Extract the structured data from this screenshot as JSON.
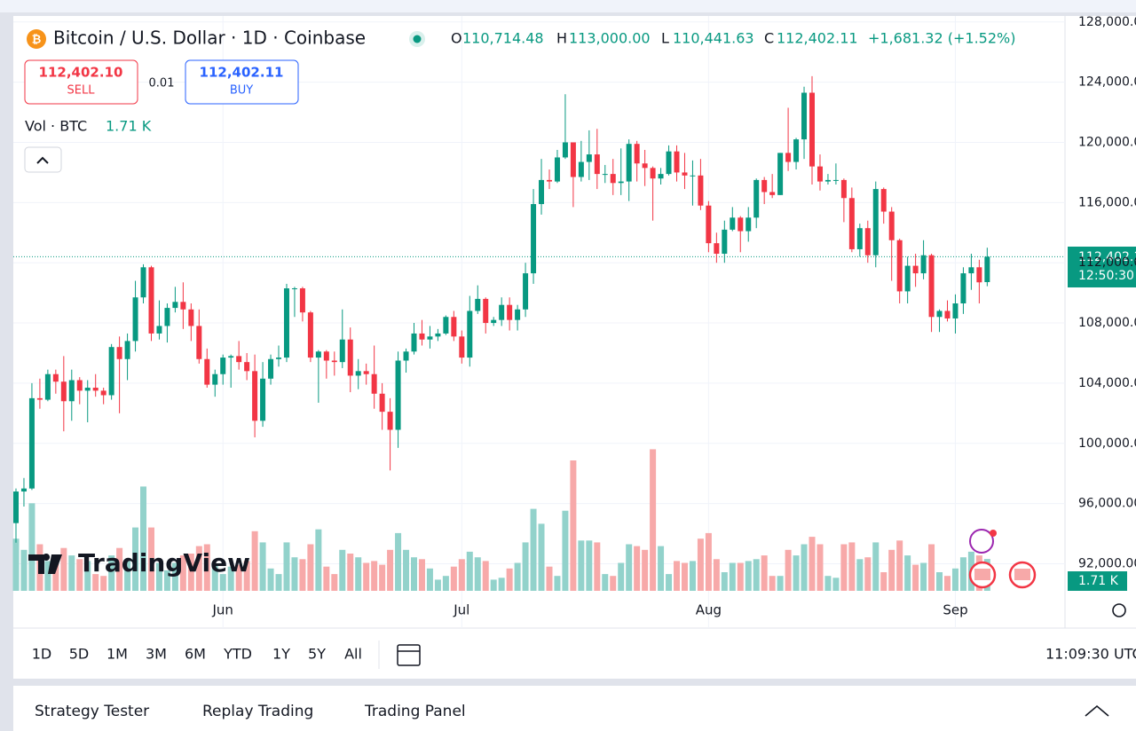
{
  "header": {
    "symbol": "Bitcoin / U.S. Dollar · 1D · Coinbase",
    "ohlc": [
      {
        "key": "O",
        "value": "110,714.48"
      },
      {
        "key": "H",
        "value": "113,000.00"
      },
      {
        "key": "L",
        "value": "110,441.63"
      },
      {
        "key": "C",
        "value": "112,402.11"
      }
    ],
    "change": "+1,681.32 (+1.52%)"
  },
  "trade": {
    "sell_price": "112,402.10",
    "sell": "SELL",
    "spread": "0.01",
    "buy_price": "112,402.11",
    "buy": "BUY"
  },
  "volume_legend": {
    "title": "Vol · BTC",
    "value": "1.71 K"
  },
  "logo": "TradingView",
  "chart_data": {
    "type": "candlestick",
    "categories": [
      null,
      null,
      null,
      null,
      null,
      null,
      null,
      null,
      null,
      null,
      null,
      null,
      null,
      null,
      null,
      null,
      null,
      null,
      null,
      null,
      null,
      null,
      null,
      null,
      null,
      null,
      "Jun",
      null,
      null,
      null,
      null,
      null,
      null,
      null,
      null,
      null,
      null,
      null,
      null,
      null,
      null,
      null,
      null,
      null,
      null,
      null,
      null,
      null,
      null,
      null,
      null,
      null,
      null,
      null,
      null,
      null,
      "Jul",
      null,
      null,
      null,
      null,
      null,
      null,
      null,
      null,
      null,
      null,
      null,
      null,
      null,
      null,
      null,
      null,
      null,
      null,
      null,
      null,
      null,
      null,
      null,
      null,
      null,
      null,
      null,
      null,
      null,
      null,
      "Aug",
      null,
      null,
      null,
      null,
      null,
      null,
      null,
      null,
      null,
      null,
      null,
      null,
      null,
      null,
      null,
      null,
      null,
      null,
      null,
      null,
      null,
      null,
      null,
      null,
      null,
      null,
      null,
      null,
      null,
      null,
      "Sep",
      null,
      null,
      null,
      null
    ],
    "open": [
      94700,
      96800,
      97000,
      103000,
      102900,
      104600,
      104100,
      102800,
      104200,
      103500,
      103700,
      103500,
      103200,
      106400,
      105600,
      106800,
      109700,
      111700,
      107300,
      107800,
      109000,
      109400,
      108900,
      107800,
      105600,
      103900,
      104600,
      105700,
      105800,
      105400,
      104800,
      101500,
      104300,
      105600,
      105700,
      110300,
      110300,
      108700,
      105700,
      106100,
      105500,
      105400,
      106900,
      104500,
      104800,
      104600,
      103300,
      102100,
      100900,
      105500,
      106100,
      107300,
      106900,
      107100,
      107300,
      108400,
      107100,
      105700,
      108800,
      109600,
      108000,
      108200,
      109200,
      108200,
      108900,
      111300,
      115900,
      117500,
      117400,
      119000,
      120000,
      117700,
      118700,
      119200,
      117900,
      117900,
      117300,
      117400,
      119900,
      118600,
      118300,
      117600,
      117900,
      119400,
      118000,
      117800,
      117800,
      115800,
      113300,
      112600,
      114200,
      115000,
      114100,
      115000,
      117500,
      116700,
      116500,
      119300,
      118700,
      120200,
      123300,
      118400,
      117400,
      117500,
      117500,
      116300,
      112900,
      114300,
      112500,
      116900,
      115400,
      113500,
      110100,
      111800,
      111300,
      112500,
      108400,
      108800,
      108300,
      109300,
      111300,
      111700,
      110714.48
    ],
    "high": [
      97000,
      97700,
      104000,
      104300,
      104900,
      104900,
      105800,
      104900,
      104400,
      104200,
      104600,
      103700,
      106600,
      107100,
      107300,
      110800,
      111900,
      111800,
      109500,
      109300,
      110400,
      110700,
      109300,
      108900,
      106300,
      104900,
      105900,
      105900,
      106800,
      106000,
      105900,
      105400,
      105900,
      106500,
      110600,
      110400,
      110400,
      108800,
      106200,
      106200,
      106100,
      108900,
      107700,
      105600,
      105300,
      106500,
      104000,
      103000,
      106100,
      106300,
      108000,
      108200,
      107800,
      107600,
      108500,
      108800,
      107500,
      109800,
      110500,
      109700,
      108400,
      109700,
      109700,
      109200,
      112000,
      116900,
      118900,
      118200,
      119500,
      123200,
      120000,
      120100,
      120800,
      120900,
      118500,
      118900,
      119600,
      120200,
      120100,
      119500,
      118400,
      118300,
      119800,
      119800,
      119300,
      118800,
      118900,
      116100,
      114000,
      114800,
      115700,
      115100,
      115700,
      117600,
      117700,
      117900,
      119300,
      122300,
      120300,
      123700,
      124400,
      119200,
      117900,
      118600,
      117600,
      117000,
      114600,
      114800,
      117400,
      117000,
      115700,
      113600,
      112400,
      112600,
      113500,
      112600,
      108900,
      109500,
      109900,
      111700,
      112600,
      112200,
      113000
    ],
    "low": [
      93400,
      95800,
      96900,
      102300,
      102800,
      103300,
      100800,
      101500,
      102600,
      101400,
      103100,
      102600,
      102900,
      102000,
      104200,
      106100,
      109300,
      106800,
      106900,
      106700,
      108700,
      107600,
      106800,
      105300,
      103700,
      103100,
      103900,
      103700,
      104900,
      104200,
      100400,
      101100,
      103900,
      105100,
      105400,
      108400,
      108100,
      105400,
      102700,
      104300,
      104500,
      105000,
      103400,
      103600,
      103900,
      102300,
      100900,
      98200,
      99700,
      104700,
      105900,
      106500,
      106300,
      106800,
      107200,
      106800,
      105300,
      105100,
      108600,
      107300,
      107800,
      107800,
      107500,
      107500,
      108400,
      110600,
      115200,
      116900,
      117300,
      118900,
      115700,
      117400,
      117500,
      116900,
      117300,
      116500,
      116500,
      116100,
      117400,
      117100,
      114800,
      117200,
      117800,
      117400,
      116900,
      115800,
      115500,
      112700,
      112000,
      112000,
      114100,
      112700,
      113400,
      114300,
      115900,
      116300,
      116500,
      118100,
      118200,
      118900,
      117200,
      116800,
      117200,
      117200,
      114700,
      112700,
      112400,
      112000,
      111700,
      114600,
      110800,
      109300,
      109300,
      110400,
      110900,
      107400,
      107400,
      108100,
      107300,
      108600,
      110200,
      109300,
      110441.63
    ],
    "close": [
      96800,
      97000,
      103000,
      102900,
      104600,
      104100,
      102800,
      104200,
      103500,
      103700,
      103500,
      103200,
      106400,
      105600,
      106800,
      109700,
      111700,
      107300,
      107800,
      109000,
      109400,
      108900,
      107800,
      105600,
      103900,
      104600,
      105700,
      105800,
      105400,
      104800,
      101500,
      104300,
      105600,
      105700,
      110300,
      110300,
      108700,
      105700,
      106100,
      105500,
      105400,
      106900,
      104500,
      104800,
      104600,
      103300,
      102100,
      100900,
      105500,
      106100,
      107300,
      106900,
      107100,
      107300,
      108400,
      107100,
      105700,
      108800,
      109600,
      108000,
      108200,
      109200,
      108200,
      108900,
      111300,
      115900,
      117500,
      117400,
      119000,
      120000,
      117700,
      118700,
      119200,
      117900,
      117900,
      117300,
      117400,
      119900,
      118600,
      118300,
      117600,
      117900,
      119400,
      118000,
      117800,
      117800,
      115800,
      113300,
      112600,
      114200,
      115000,
      114100,
      115000,
      117500,
      116700,
      116500,
      119300,
      118700,
      120200,
      123300,
      118400,
      117400,
      117500,
      117500,
      116300,
      112900,
      114300,
      112500,
      116900,
      115400,
      113500,
      110100,
      111800,
      111300,
      112500,
      108400,
      108800,
      108300,
      109300,
      111300,
      111700,
      110700,
      112402.11
    ],
    "volume": [
      2.8,
      2.2,
      4.7,
      2.5,
      1.6,
      1.5,
      2.3,
      1.9,
      1.7,
      1.6,
      0.9,
      0.8,
      1.9,
      2.3,
      1.7,
      3.4,
      5.6,
      3.4,
      1.5,
      1.1,
      1.5,
      1.9,
      2.0,
      2.4,
      2.5,
      1.4,
      0.9,
      1.3,
      1.4,
      1.6,
      3.2,
      2.6,
      1.2,
      0.9,
      2.6,
      1.8,
      1.7,
      2.5,
      3.3,
      1.3,
      0.9,
      2.2,
      2.0,
      1.8,
      1.5,
      1.6,
      1.4,
      2.2,
      3.1,
      2.2,
      1.8,
      1.7,
      1.2,
      0.6,
      0.8,
      1.3,
      1.7,
      2.1,
      1.8,
      1.6,
      0.6,
      0.7,
      1.2,
      1.5,
      2.6,
      4.4,
      3.6,
      1.3,
      0.8,
      4.3,
      7.0,
      2.7,
      2.7,
      2.6,
      0.9,
      0.8,
      1.5,
      2.5,
      2.4,
      2.2,
      7.6,
      2.4,
      0.9,
      1.6,
      1.5,
      1.6,
      2.8,
      3.1,
      1.7,
      1.0,
      1.5,
      1.5,
      1.6,
      1.7,
      1.9,
      0.8,
      0.8,
      2.2,
      1.9,
      2.5,
      2.9,
      2.5,
      0.8,
      0.7,
      2.5,
      2.6,
      1.7,
      1.8,
      2.6,
      1.0,
      2.2,
      2.7,
      1.9,
      1.4,
      1.5,
      2.5,
      1.0,
      0.8,
      1.2,
      1.8,
      2.1,
      1.9,
      1.71
    ],
    "colors": {
      "up": "#089981",
      "down": "#f23645",
      "volume_up": "#92d2cb",
      "volume_down": "#f7a9a9"
    },
    "ylim": [
      90200,
      128400
    ],
    "yticks": [
      {
        "value": 92000,
        "label": "92,000.00"
      },
      {
        "value": 96000,
        "label": "96,000.00"
      },
      {
        "value": 100000,
        "label": "100,000.00"
      },
      {
        "value": 104000,
        "label": "104,000.00"
      },
      {
        "value": 108000,
        "label": "108,000.00"
      },
      {
        "value": 112000,
        "label": "112,000.00"
      },
      {
        "value": 116000,
        "label": "116,000.00"
      },
      {
        "value": 120000,
        "label": "120,000.00"
      },
      {
        "value": 124000,
        "label": "124,000.00"
      },
      {
        "value": 128000,
        "label": "128,000.00"
      }
    ],
    "grid": true,
    "last_price": {
      "value": 112402.11,
      "label": "112,402.11"
    },
    "countdown": "12:50:30"
  },
  "toolbar": {
    "ranges": [
      "1D",
      "5D",
      "1M",
      "3M",
      "6M",
      "YTD",
      "1Y",
      "5Y",
      "All"
    ],
    "clock": "11:09:30 UTC"
  },
  "bottom_panel": {
    "tabs": [
      "Strategy Tester",
      "Replay Trading",
      "Trading Panel"
    ]
  }
}
